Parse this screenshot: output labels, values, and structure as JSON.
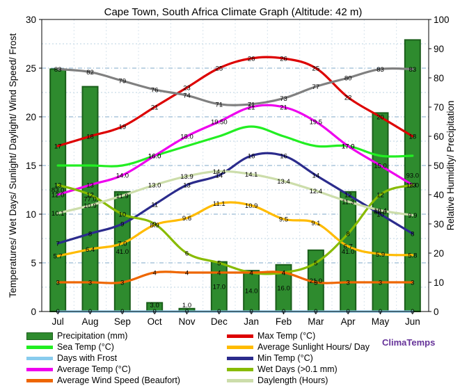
{
  "chart_data": {
    "type": "bar+line",
    "title": "Cape Town, South Africa Climate Graph (Altitude: 42 m)",
    "ylabel_left": "Temperatures/ Wet Days/ Sunlight/ Daylight/ Wind Speed/ Frost",
    "ylabel_right": "Relative Humidity/ Precipitation",
    "ylim_left": [
      0,
      30
    ],
    "ylim_right": [
      0,
      100
    ],
    "yticks_left": [
      "0",
      "5",
      "10",
      "15",
      "20",
      "25",
      "30"
    ],
    "yticks_right": [
      "0",
      "10",
      "20",
      "30",
      "40",
      "50",
      "60",
      "70",
      "80",
      "90",
      "100"
    ],
    "categories": [
      "Jul",
      "Aug",
      "Sep",
      "Oct",
      "Nov",
      "Dec",
      "Jan",
      "Feb",
      "Mar",
      "Apr",
      "May",
      "Jun"
    ],
    "grid": true,
    "watermark": "ClimaTemps",
    "precipitation": {
      "name": "Precipitation (mm)",
      "axis": "right",
      "color": "#2e8b2e",
      "values": [
        83.0,
        77.0,
        41.0,
        3.0,
        1.0,
        17.0,
        14.0,
        16.0,
        21.0,
        41.0,
        68.0,
        93.0
      ],
      "labels": [
        "83.0",
        "77.0",
        "41.0",
        "3.0",
        "1.0",
        "17.0",
        "14.0",
        "16.0",
        "21.0",
        "41.0",
        "68.0",
        "93.0"
      ]
    },
    "series": [
      {
        "name": "Max Temp (°C)",
        "axis": "left",
        "color": "#dd0000",
        "values": [
          17,
          18,
          19,
          21,
          23,
          25,
          26,
          26,
          25,
          22,
          20,
          18
        ],
        "labels": [
          "17",
          "18",
          "19",
          "21",
          "23",
          "25",
          "26",
          "26",
          "25",
          "22",
          "20",
          "18"
        ]
      },
      {
        "name": "Sea Temp (°C)",
        "axis": "left",
        "color": "#22ee22",
        "values": [
          15.0,
          15.0,
          15.0,
          16.0,
          17.0,
          18.0,
          19.0,
          18.0,
          17.0,
          17.0,
          16.0,
          16.0
        ],
        "labels": [
          "",
          "",
          "",
          "16.0",
          "",
          "",
          "",
          "",
          "",
          "17.0",
          "",
          ""
        ]
      },
      {
        "name": "Average Sunlight Hours/ Day",
        "axis": "left",
        "color": "#ffbb00",
        "values": [
          5.7,
          6.4,
          7.0,
          8.9,
          9.6,
          11.1,
          10.9,
          9.5,
          9.1,
          6.7,
          5.9,
          5.8
        ],
        "labels": [
          "5.7",
          "6.4",
          "7.0",
          "8.9",
          "9.6",
          "11.1",
          "10.9",
          "9.5",
          "9.1",
          "6.7",
          "5.9",
          "5.8"
        ]
      },
      {
        "name": "Days with Frost",
        "axis": "left",
        "color": "#88ccee",
        "values": [
          0,
          0,
          0,
          0,
          0,
          0,
          0,
          0,
          0,
          0,
          0,
          0
        ],
        "labels": [
          "0",
          "0",
          "0",
          "0",
          "0",
          "0",
          "0",
          "0",
          "0",
          "0",
          "0",
          "0"
        ]
      },
      {
        "name": "Relative Humidity",
        "axis": "right",
        "color": "#808080",
        "in_legend": false,
        "values": [
          83,
          82,
          79,
          76,
          74,
          71,
          71,
          73,
          77,
          80,
          83,
          83
        ],
        "labels": [
          "83",
          "82",
          "79",
          "76",
          "74",
          "71",
          "71",
          "73",
          "77",
          "80",
          "83",
          "83"
        ]
      },
      {
        "name": "Min Temp (°C)",
        "axis": "left",
        "color": "#2b2b8c",
        "values": [
          7,
          8,
          9,
          11,
          13,
          14,
          16,
          16,
          14,
          12,
          10,
          8
        ],
        "labels": [
          "7",
          "8",
          "9",
          "11",
          "13",
          "14",
          "16",
          "16",
          "14",
          "12",
          "10",
          "8"
        ]
      },
      {
        "name": "Average Temp (°C)",
        "axis": "left",
        "color": "#ee00ee",
        "values": [
          12.0,
          13,
          14.0,
          16.0,
          18.0,
          19.5,
          21,
          21,
          19.5,
          17.0,
          15.0,
          13.0
        ],
        "labels": [
          "12.0",
          "13",
          "14.0",
          "16.0",
          "18.0",
          "19.50",
          "21",
          "21",
          "19.5",
          "17.0",
          "15.0",
          "13.0"
        ]
      },
      {
        "name": "Wet Days (>0.1 mm)",
        "axis": "left",
        "color": "#88bb00",
        "values": [
          13,
          12,
          10,
          9,
          6,
          5,
          4,
          4,
          5,
          8,
          12,
          13
        ],
        "labels": [
          "13",
          "12",
          "10",
          "9",
          "6",
          "5",
          "4",
          "4",
          "5",
          "8",
          "12",
          "13"
        ]
      },
      {
        "name": "Average Wind Speed (Beaufort)",
        "axis": "left",
        "color": "#ee6600",
        "values": [
          3,
          3,
          3,
          4,
          4,
          4,
          4,
          4,
          3,
          3,
          3,
          3
        ],
        "labels": [
          "3",
          "3",
          "3",
          "4",
          "4",
          "4",
          "4",
          "4",
          "3",
          "3",
          "3",
          "3"
        ]
      },
      {
        "name": "Daylength (Hours)",
        "axis": "left",
        "color": "#ccddaa",
        "values": [
          10.1,
          10.9,
          11.9,
          13.0,
          13.9,
          14.4,
          14.1,
          13.4,
          12.4,
          11.3,
          10.4,
          9.9
        ],
        "labels": [
          "10.1",
          "10.9",
          "11.9",
          "13.0",
          "13.9",
          "14.4",
          "14.1",
          "13.4",
          "12.4",
          "11.3",
          "10.4",
          "9.9"
        ]
      }
    ]
  }
}
